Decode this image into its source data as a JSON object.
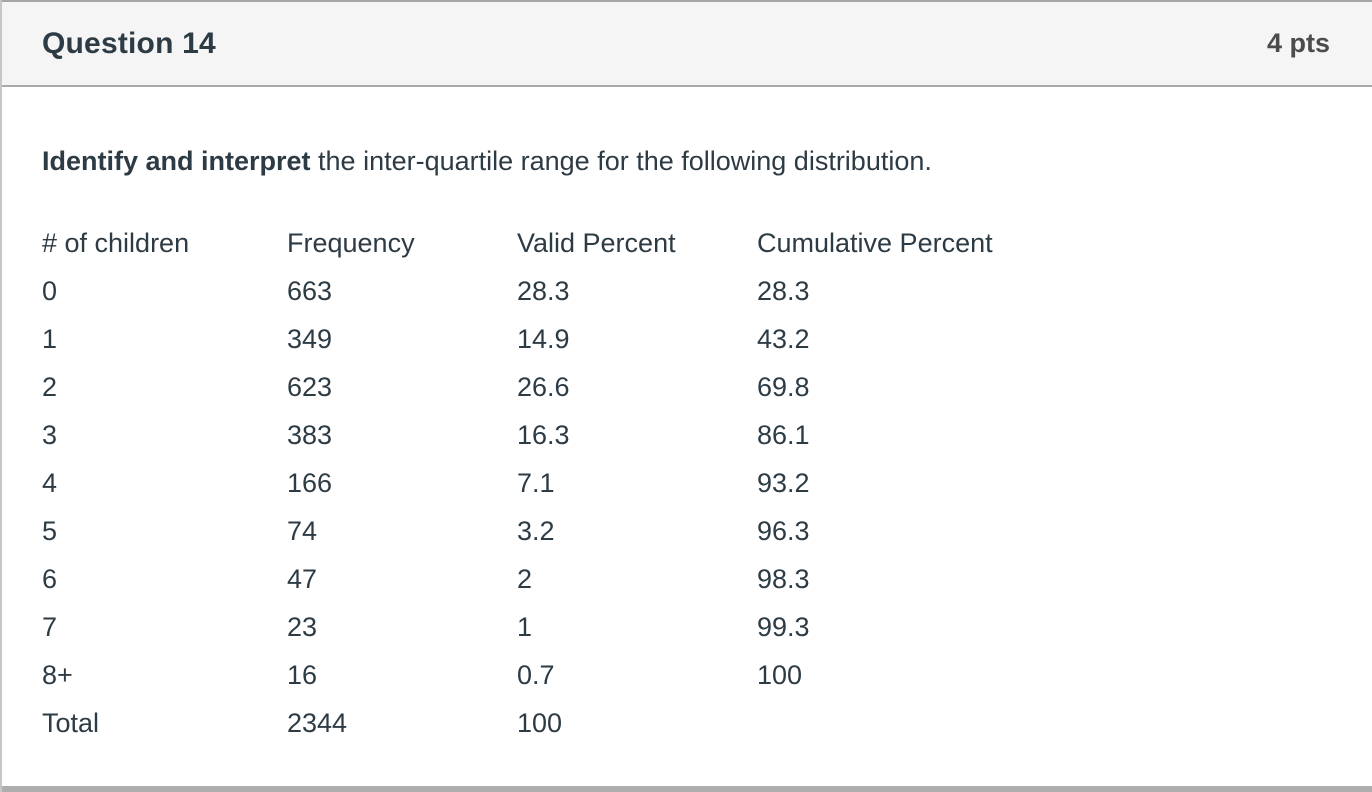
{
  "header": {
    "title": "Question 14",
    "points": "4 pts"
  },
  "question": {
    "prompt_bold": "Identify and interpret",
    "prompt_rest": " the inter-quartile range for the following distribution."
  },
  "table": {
    "columns": [
      "# of children",
      "Frequency",
      "Valid Percent",
      "Cumulative Percent"
    ],
    "rows": [
      [
        "0",
        "663",
        "28.3",
        "28.3"
      ],
      [
        "1",
        "349",
        "14.9",
        "43.2"
      ],
      [
        "2",
        "623",
        "26.6",
        "69.8"
      ],
      [
        "3",
        "383",
        "16.3",
        "86.1"
      ],
      [
        "4",
        "166",
        "7.1",
        "93.2"
      ],
      [
        "5",
        "74",
        "3.2",
        "96.3"
      ],
      [
        "6",
        "47",
        "2",
        "98.3"
      ],
      [
        "7",
        "23",
        "1",
        "99.3"
      ],
      [
        "8+",
        "16",
        "0.7",
        "100"
      ],
      [
        "Total",
        "2344",
        "100",
        ""
      ]
    ]
  },
  "colors": {
    "header_bg": "#f5f5f5",
    "border": "#a9a9a9",
    "text": "#2d3b45",
    "points_text": "#4c4c4c"
  }
}
